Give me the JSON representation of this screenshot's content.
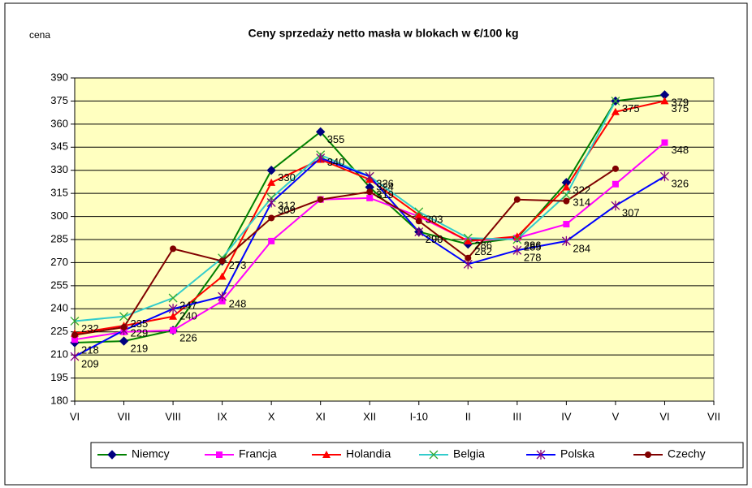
{
  "chart_data": {
    "type": "line",
    "title": "Ceny sprzedaży netto masła w blokach w €/100 kg",
    "ylabel": "cena",
    "categories": [
      "VI",
      "VII",
      "VIII",
      "IX",
      "X",
      "XI",
      "XII",
      "I-10",
      "II",
      "III",
      "IV",
      "V",
      "VI",
      "VII"
    ],
    "ylim": [
      180,
      390
    ],
    "yticks": [
      180,
      195,
      210,
      225,
      240,
      255,
      270,
      285,
      300,
      315,
      330,
      345,
      360,
      375,
      390
    ],
    "grid": true,
    "legend": "bottom",
    "series": [
      {
        "name": "Niemcy",
        "color": "#008000",
        "marker_color": "#000080",
        "marker": "diamond",
        "values": [
          218,
          219,
          226,
          271,
          330,
          355,
          319,
          290,
          282,
          286,
          322,
          375,
          379,
          null
        ],
        "value_labels": [
          "218",
          "219",
          "226",
          null,
          "330",
          "355",
          "319",
          "290",
          "282",
          null,
          "322",
          null,
          "379",
          null
        ]
      },
      {
        "name": "Francja",
        "color": "#FF00FF",
        "marker_color": "#FF00FF",
        "marker": "square",
        "values": [
          220,
          225,
          226,
          245,
          284,
          311,
          312,
          300,
          284,
          286,
          295,
          321,
          348,
          null
        ],
        "value_labels": [
          null,
          null,
          null,
          null,
          null,
          null,
          null,
          null,
          null,
          "286",
          null,
          null,
          "348",
          null
        ]
      },
      {
        "name": "Holandia",
        "color": "#FF0000",
        "marker_color": "#FF0000",
        "marker": "triangle",
        "values": [
          224,
          229,
          235,
          261,
          322,
          337,
          324,
          301,
          284,
          287,
          319,
          368,
          375,
          null
        ],
        "value_labels": [
          null,
          "229",
          null,
          null,
          null,
          null,
          "324",
          null,
          null,
          null,
          null,
          null,
          "375",
          null
        ]
      },
      {
        "name": "Belgia",
        "color": "#33CCCC",
        "marker_color": "#33AA33",
        "marker": "x",
        "values": [
          232,
          235,
          247,
          273,
          312,
          340,
          326,
          303,
          286,
          285,
          314,
          375,
          null,
          null
        ],
        "value_labels": [
          "232",
          "235",
          "247",
          "273",
          "312",
          "340",
          "326",
          "303",
          "286",
          "285",
          "314",
          "375",
          null,
          null
        ]
      },
      {
        "name": "Polska",
        "color": "#0000FF",
        "marker_color": "#800080",
        "marker": "star",
        "values": [
          209,
          226,
          240,
          248,
          309,
          338,
          326,
          290,
          269,
          278,
          284,
          307,
          326,
          null
        ],
        "value_labels": [
          "209",
          null,
          "240",
          "248",
          "309",
          null,
          null,
          "290",
          null,
          "278",
          "284",
          "307",
          "326",
          null
        ]
      },
      {
        "name": "Czechy",
        "color": "#800000",
        "marker_color": "#800000",
        "marker": "circle",
        "values": [
          223,
          228,
          279,
          271,
          299,
          311,
          316,
          297,
          273,
          311,
          310,
          331,
          null,
          null
        ]
      }
    ]
  }
}
